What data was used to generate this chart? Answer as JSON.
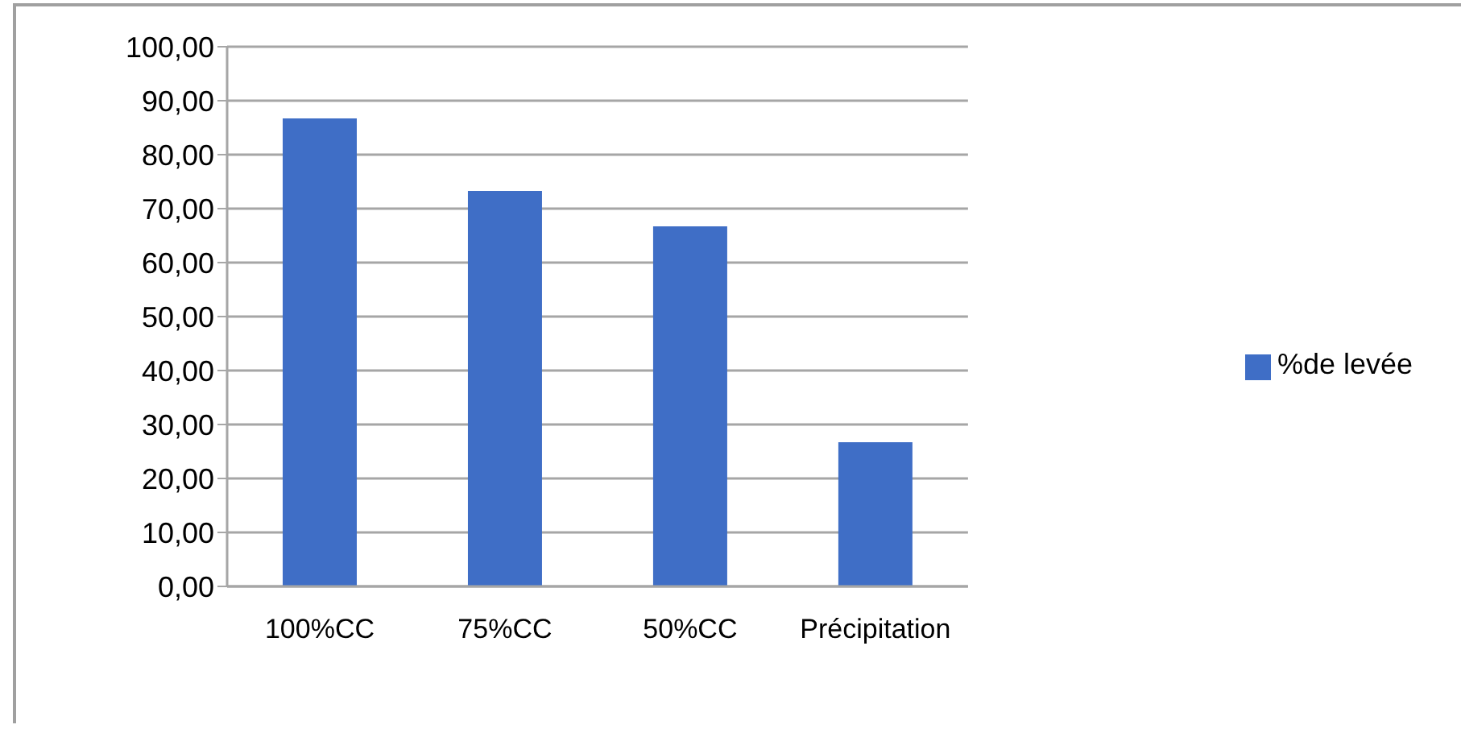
{
  "chart_data": {
    "type": "bar",
    "categories": [
      "100%CC",
      "75%CC",
      "50%CC",
      "Précipitation"
    ],
    "series": [
      {
        "name": "%de levée",
        "color": "#3f6ec6",
        "values": [
          86.7,
          73.3,
          66.7,
          26.7
        ]
      }
    ],
    "ylim": [
      0,
      100
    ],
    "yticks": [
      {
        "value": 0,
        "label": "0,00"
      },
      {
        "value": 10,
        "label": "10,00"
      },
      {
        "value": 20,
        "label": "20,00"
      },
      {
        "value": 30,
        "label": "30,00"
      },
      {
        "value": 40,
        "label": "40,00"
      },
      {
        "value": 50,
        "label": "50,00"
      },
      {
        "value": 60,
        "label": "60,00"
      },
      {
        "value": 70,
        "label": "70,00"
      },
      {
        "value": 80,
        "label": "80,00"
      },
      {
        "value": 90,
        "label": "90,00"
      },
      {
        "value": 100,
        "label": "100,00"
      }
    ],
    "grid": "y",
    "legend": "right"
  }
}
